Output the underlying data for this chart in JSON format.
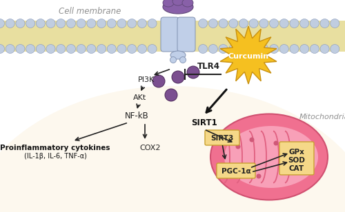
{
  "bg_color": "#ffffff",
  "cell_membrane_label": "Cell membrane",
  "mitochondria_label": "Mitochondria",
  "curcumin_label": "Curcumin",
  "tlr4_label": "TLR4",
  "pi3k_label": "PI3K",
  "akt_label": "AKt",
  "nfkb_label": "NF-kB",
  "cox2_label": "COX2",
  "sirt1_label": "SIRT1",
  "sirt3_label": "SIRT3",
  "pgc1a_label": "PGC-1α",
  "gpx_label": "GPx",
  "sod_label": "SOD",
  "cat_label": "CAT",
  "pro_cytokines_label": "Proinflammatory cytokines",
  "pro_cytokines_sub": "(IL-1β, IL-6, TNF-α)",
  "membrane_yellow": "#e8dfa0",
  "membrane_bubble_color": "#c0cde0",
  "cell_interior_bg": "#fdf8ee",
  "mito_outer_color": "#f07090",
  "mito_inner_color": "#f8a0b8",
  "mito_cristae_color": "#e06080",
  "purple_color": "#7b4f90",
  "curcumin_star_color": "#f5c020",
  "curcumin_text_color": "#ffffff",
  "receptor_blue": "#c0cfe8",
  "receptor_purple": "#8860a8",
  "arrow_color": "#222222",
  "label_gray": "#909090",
  "box_fill": "#f5d888",
  "box_edge": "#c8a030",
  "white": "#ffffff"
}
